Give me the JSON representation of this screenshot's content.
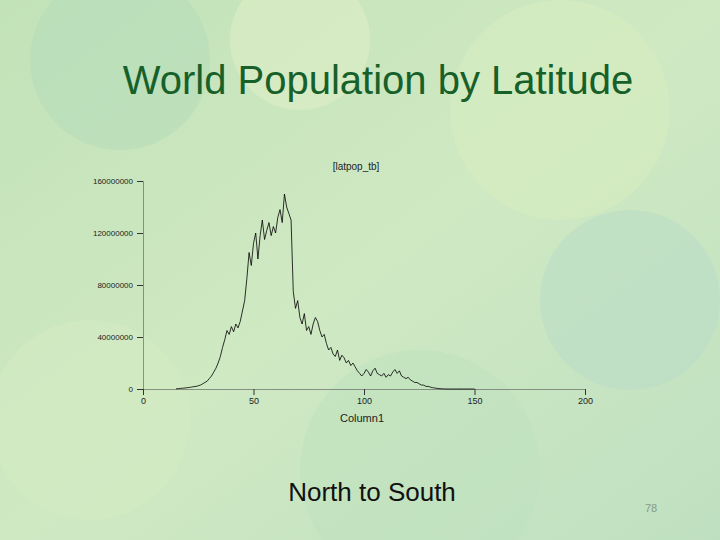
{
  "slide": {
    "title": "World Population by Latitude",
    "caption": "North to South",
    "page_number": "78"
  },
  "chart_data": {
    "type": "line",
    "title": "[latpop_tb]",
    "x_label": "Column1",
    "color": "#000000",
    "x": [
      15,
      16,
      17,
      18,
      19,
      20,
      21,
      22,
      23,
      24,
      25,
      26,
      27,
      28,
      29,
      30,
      31,
      32,
      33,
      34,
      35,
      36,
      37,
      38,
      39,
      40,
      41,
      42,
      43,
      44,
      45,
      46,
      47,
      48,
      49,
      50,
      51,
      52,
      53,
      54,
      55,
      56,
      57,
      58,
      59,
      60,
      61,
      62,
      63,
      64,
      65,
      66,
      67,
      68,
      69,
      70,
      71,
      72,
      73,
      74,
      75,
      76,
      77,
      78,
      79,
      80,
      81,
      82,
      83,
      84,
      85,
      86,
      87,
      88,
      89,
      90,
      91,
      92,
      93,
      94,
      95,
      96,
      97,
      98,
      99,
      100,
      101,
      102,
      103,
      104,
      105,
      106,
      107,
      108,
      109,
      110,
      111,
      112,
      113,
      114,
      115,
      116,
      117,
      118,
      119,
      120,
      121,
      122,
      123,
      124,
      125,
      126,
      127,
      128,
      129,
      130,
      131,
      132,
      133,
      134,
      135,
      136,
      137,
      138,
      139,
      140,
      141,
      142,
      143,
      144,
      145,
      146,
      147,
      148,
      149,
      150
    ],
    "values": [
      200000,
      300000,
      500000,
      600000,
      800000,
      1000000,
      1200000,
      1500000,
      1800000,
      2000000,
      2500000,
      3000000,
      4000000,
      5000000,
      6000000,
      8000000,
      10000000,
      13000000,
      16000000,
      20000000,
      25000000,
      32000000,
      38000000,
      45000000,
      42000000,
      48000000,
      44000000,
      50000000,
      47000000,
      52000000,
      60000000,
      68000000,
      85000000,
      105000000,
      95000000,
      112000000,
      120000000,
      100000000,
      118000000,
      130000000,
      115000000,
      122000000,
      128000000,
      118000000,
      125000000,
      120000000,
      132000000,
      138000000,
      128000000,
      150000000,
      140000000,
      135000000,
      130000000,
      75000000,
      62000000,
      68000000,
      55000000,
      50000000,
      58000000,
      45000000,
      48000000,
      42000000,
      50000000,
      55000000,
      52000000,
      45000000,
      40000000,
      42000000,
      35000000,
      30000000,
      32000000,
      27000000,
      25000000,
      30000000,
      22000000,
      26000000,
      24000000,
      20000000,
      22000000,
      18000000,
      20000000,
      17000000,
      14000000,
      12000000,
      10000000,
      12000000,
      15000000,
      13000000,
      10000000,
      14000000,
      16000000,
      12000000,
      11000000,
      10000000,
      12000000,
      9000000,
      11000000,
      10000000,
      13000000,
      15000000,
      12000000,
      14000000,
      10000000,
      9000000,
      8000000,
      9000000,
      7000000,
      6000000,
      5000000,
      5000000,
      4000000,
      3000000,
      3000000,
      2000000,
      2000000,
      1500000,
      1000000,
      800000,
      500000,
      300000,
      200000,
      100000,
      0,
      0,
      0,
      0,
      0,
      0,
      0,
      0,
      0,
      0,
      0,
      0,
      0,
      0
    ],
    "xlim": [
      0,
      200
    ],
    "xticks": [
      0,
      50,
      100,
      150,
      200
    ],
    "ylim": [
      0,
      160000000
    ],
    "yticks": [
      0,
      40000000,
      80000000,
      120000000,
      160000000
    ],
    "grid": false
  }
}
